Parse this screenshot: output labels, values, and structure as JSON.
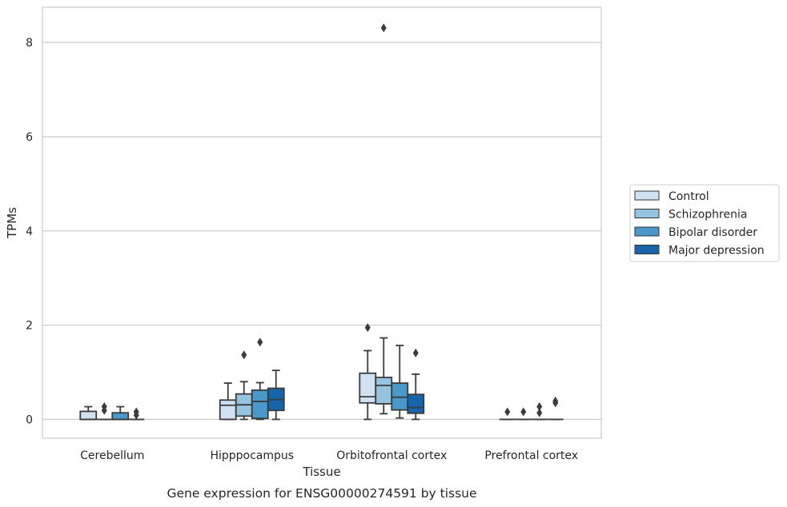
{
  "chart_data": {
    "type": "box",
    "caption": "Gene expression for ENSG00000274591 by tissue",
    "xlabel": "Tissue",
    "ylabel": "TPMs",
    "ylim": [
      -0.4,
      8.75
    ],
    "yticks": [
      "0",
      "2",
      "4",
      "6",
      "8"
    ],
    "grid": "horizontal",
    "legend_placement": "center-right",
    "categories": [
      "Cerebellum",
      "Hipppocampus",
      "Orbitofrontal cortex",
      "Prefrontal cortex"
    ],
    "series": [
      {
        "name": "Control",
        "color": "#d0e1f2",
        "boxes": [
          {
            "whislo": 0.0,
            "q1": 0.0,
            "med": 0.0,
            "q3": 0.17,
            "whishi": 0.27,
            "fliers": []
          },
          {
            "whislo": 0.0,
            "q1": 0.0,
            "med": 0.3,
            "q3": 0.41,
            "whishi": 0.77,
            "fliers": []
          },
          {
            "whislo": 0.0,
            "q1": 0.35,
            "med": 0.48,
            "q3": 0.98,
            "whishi": 1.46,
            "fliers": [
              1.95
            ]
          },
          {
            "whislo": 0.0,
            "q1": 0.0,
            "med": 0.0,
            "q3": 0.0,
            "whishi": 0.0,
            "fliers": [
              0.16
            ]
          }
        ]
      },
      {
        "name": "Schizophrenia",
        "color": "#94c4df",
        "boxes": [
          {
            "whislo": 0.0,
            "q1": 0.0,
            "med": 0.0,
            "q3": 0.0,
            "whishi": 0.0,
            "fliers": [
              0.19,
              0.27
            ]
          },
          {
            "whislo": 0.0,
            "q1": 0.07,
            "med": 0.31,
            "q3": 0.54,
            "whishi": 0.8,
            "fliers": [
              1.37
            ]
          },
          {
            "whislo": 0.12,
            "q1": 0.33,
            "med": 0.72,
            "q3": 0.89,
            "whishi": 1.73,
            "fliers": [
              8.31
            ]
          },
          {
            "whislo": 0.0,
            "q1": 0.0,
            "med": 0.0,
            "q3": 0.0,
            "whishi": 0.0,
            "fliers": [
              0.16
            ]
          }
        ]
      },
      {
        "name": "Bipolar disorder",
        "color": "#4a98c9",
        "boxes": [
          {
            "whislo": 0.0,
            "q1": 0.0,
            "med": 0.0,
            "q3": 0.14,
            "whishi": 0.27,
            "fliers": []
          },
          {
            "whislo": 0.0,
            "q1": 0.02,
            "med": 0.38,
            "q3": 0.62,
            "whishi": 0.78,
            "fliers": [
              1.64
            ]
          },
          {
            "whislo": 0.03,
            "q1": 0.2,
            "med": 0.47,
            "q3": 0.77,
            "whishi": 1.57,
            "fliers": []
          },
          {
            "whislo": 0.0,
            "q1": 0.0,
            "med": 0.0,
            "q3": 0.0,
            "whishi": 0.0,
            "fliers": [
              0.14,
              0.27
            ]
          }
        ]
      },
      {
        "name": "Major depression",
        "color": "#1764ab",
        "boxes": [
          {
            "whislo": 0.0,
            "q1": 0.0,
            "med": 0.0,
            "q3": 0.0,
            "whishi": 0.0,
            "fliers": [
              0.09,
              0.16
            ]
          },
          {
            "whislo": 0.0,
            "q1": 0.19,
            "med": 0.42,
            "q3": 0.66,
            "whishi": 1.04,
            "fliers": []
          },
          {
            "whislo": 0.0,
            "q1": 0.13,
            "med": 0.25,
            "q3": 0.53,
            "whishi": 0.96,
            "fliers": [
              1.41
            ]
          },
          {
            "whislo": 0.0,
            "q1": 0.0,
            "med": 0.0,
            "q3": 0.0,
            "whishi": 0.0,
            "fliers": [
              0.35,
              0.39
            ]
          }
        ]
      }
    ]
  }
}
